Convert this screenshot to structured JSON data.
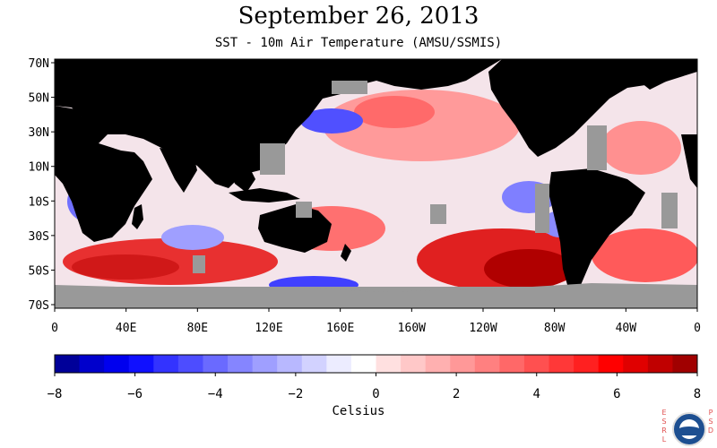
{
  "title": "September 26, 2013",
  "subtitle": "SST - 10m Air Temperature (AMSU/SSMIS)",
  "map": {
    "lat_labels": [
      "70N",
      "50N",
      "30N",
      "10N",
      "10S",
      "30S",
      "50S",
      "70S"
    ],
    "lon_labels": [
      "0",
      "40E",
      "80E",
      "120E",
      "160E",
      "160W",
      "120W",
      "80W",
      "40W",
      "0"
    ]
  },
  "colorbar": {
    "title": "Celsius",
    "range": [
      -8,
      8
    ],
    "tick_labels": [
      "−8",
      "−6",
      "−4",
      "−2",
      "0",
      "2",
      "4",
      "6",
      "8"
    ],
    "colors": [
      "#000099",
      "#0000cc",
      "#0000ee",
      "#1010ff",
      "#3333ff",
      "#4d4dff",
      "#6a6aff",
      "#8585ff",
      "#9f9fff",
      "#b8b8ff",
      "#d2d2ff",
      "#ececff",
      "#ffffff",
      "#ffe0e0",
      "#ffc8c8",
      "#ffb0b0",
      "#ff9898",
      "#ff8080",
      "#ff6868",
      "#ff5050",
      "#ff3838",
      "#ff2020",
      "#ff0000",
      "#e00000",
      "#c00000",
      "#a00000"
    ]
  },
  "colors": {
    "land": "#000000",
    "missing": "#999999",
    "warm": "#ff3030",
    "cool": "#4040ff"
  },
  "logo": {
    "left_text": "ESRL",
    "right_text": "PSD"
  }
}
